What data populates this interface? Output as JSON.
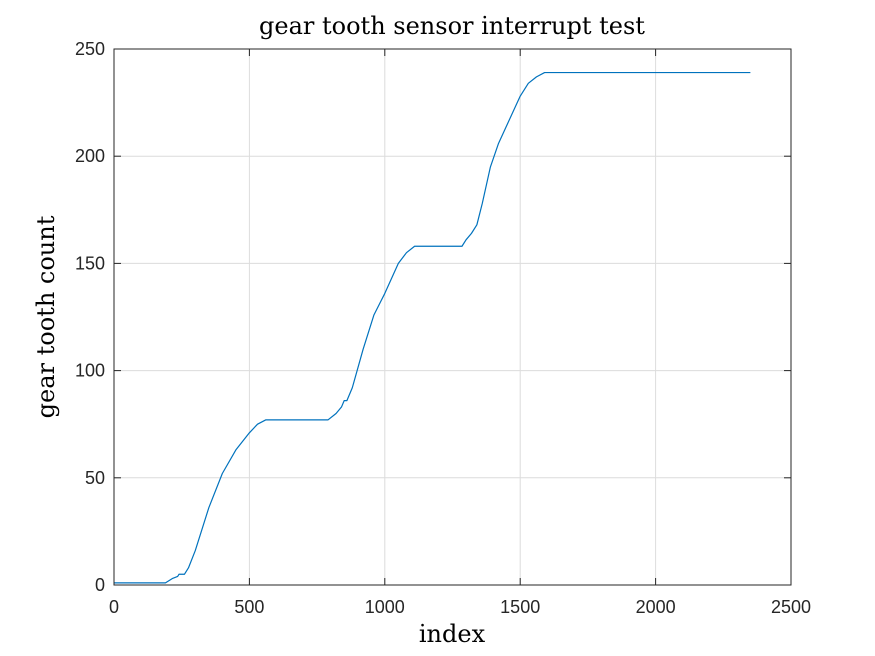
{
  "chart_data": {
    "type": "line",
    "title": "gear tooth sensor interrupt test",
    "xlabel": "index",
    "ylabel": "gear tooth count",
    "xlim": [
      0,
      2500
    ],
    "ylim": [
      0,
      250
    ],
    "xticks": [
      0,
      500,
      1000,
      1500,
      2000,
      2500
    ],
    "yticks": [
      0,
      50,
      100,
      150,
      200,
      250
    ],
    "xtick_labels": [
      "0",
      "500",
      "1000",
      "1500",
      "2000",
      "2500"
    ],
    "ytick_labels": [
      "0",
      "50",
      "100",
      "150",
      "200",
      "250"
    ],
    "grid": true,
    "series": [
      {
        "color": "#0072bd",
        "x": [
          0,
          190,
          215,
          235,
          240,
          260,
          275,
          300,
          350,
          400,
          450,
          500,
          530,
          560,
          600,
          700,
          790,
          820,
          840,
          850,
          860,
          880,
          920,
          960,
          1000,
          1050,
          1080,
          1110,
          1125,
          1200,
          1285,
          1300,
          1320,
          1340,
          1360,
          1390,
          1420,
          1460,
          1500,
          1530,
          1560,
          1590,
          1600,
          2000,
          2350
        ],
        "y": [
          1,
          1,
          3,
          4,
          5,
          5,
          8,
          16,
          36,
          52,
          63,
          71,
          75,
          77,
          77,
          77,
          77,
          80,
          83,
          86,
          86,
          92,
          110,
          126,
          136,
          150,
          155,
          158,
          158,
          158,
          158,
          161,
          164,
          168,
          178,
          195,
          206,
          217,
          228,
          234,
          237,
          239,
          239,
          239,
          239
        ]
      }
    ]
  }
}
